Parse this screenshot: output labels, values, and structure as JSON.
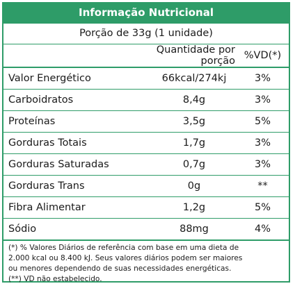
{
  "title": "Informação Nutricional",
  "portion": "Porção de 33g (1 unidade)",
  "header": {
    "quantity": "Quantidade por porção",
    "vd": "%VD(*)"
  },
  "rows": [
    {
      "name": "Valor Energético",
      "amount": "66kcal/274kj",
      "vd": "3%"
    },
    {
      "name": "Carboidratos",
      "amount": "8,4g",
      "vd": "3%"
    },
    {
      "name": "Proteínas",
      "amount": "3,5g",
      "vd": "5%"
    },
    {
      "name": "Gorduras Totais",
      "amount": "1,7g",
      "vd": "3%"
    },
    {
      "name": "Gorduras Saturadas",
      "amount": "0,7g",
      "vd": "3%"
    },
    {
      "name": "Gorduras Trans",
      "amount": "0g",
      "vd": "**"
    },
    {
      "name": "Fibra Alimentar",
      "amount": "1,2g",
      "vd": "5%"
    },
    {
      "name": "Sódio",
      "amount": "88mg",
      "vd": "4%"
    }
  ],
  "footnote": {
    "line1": "(*) % Valores Diários de referência com base em uma dieta de",
    "line2": "2.000 kcal ou 8.400 kJ. Seus valores diários podem ser maiores",
    "line3": "ou menores dependendo de suas necessidades energéticas.",
    "line4": "(**) VD não estabelecido."
  },
  "colors": {
    "accent": "#2e9c68"
  }
}
